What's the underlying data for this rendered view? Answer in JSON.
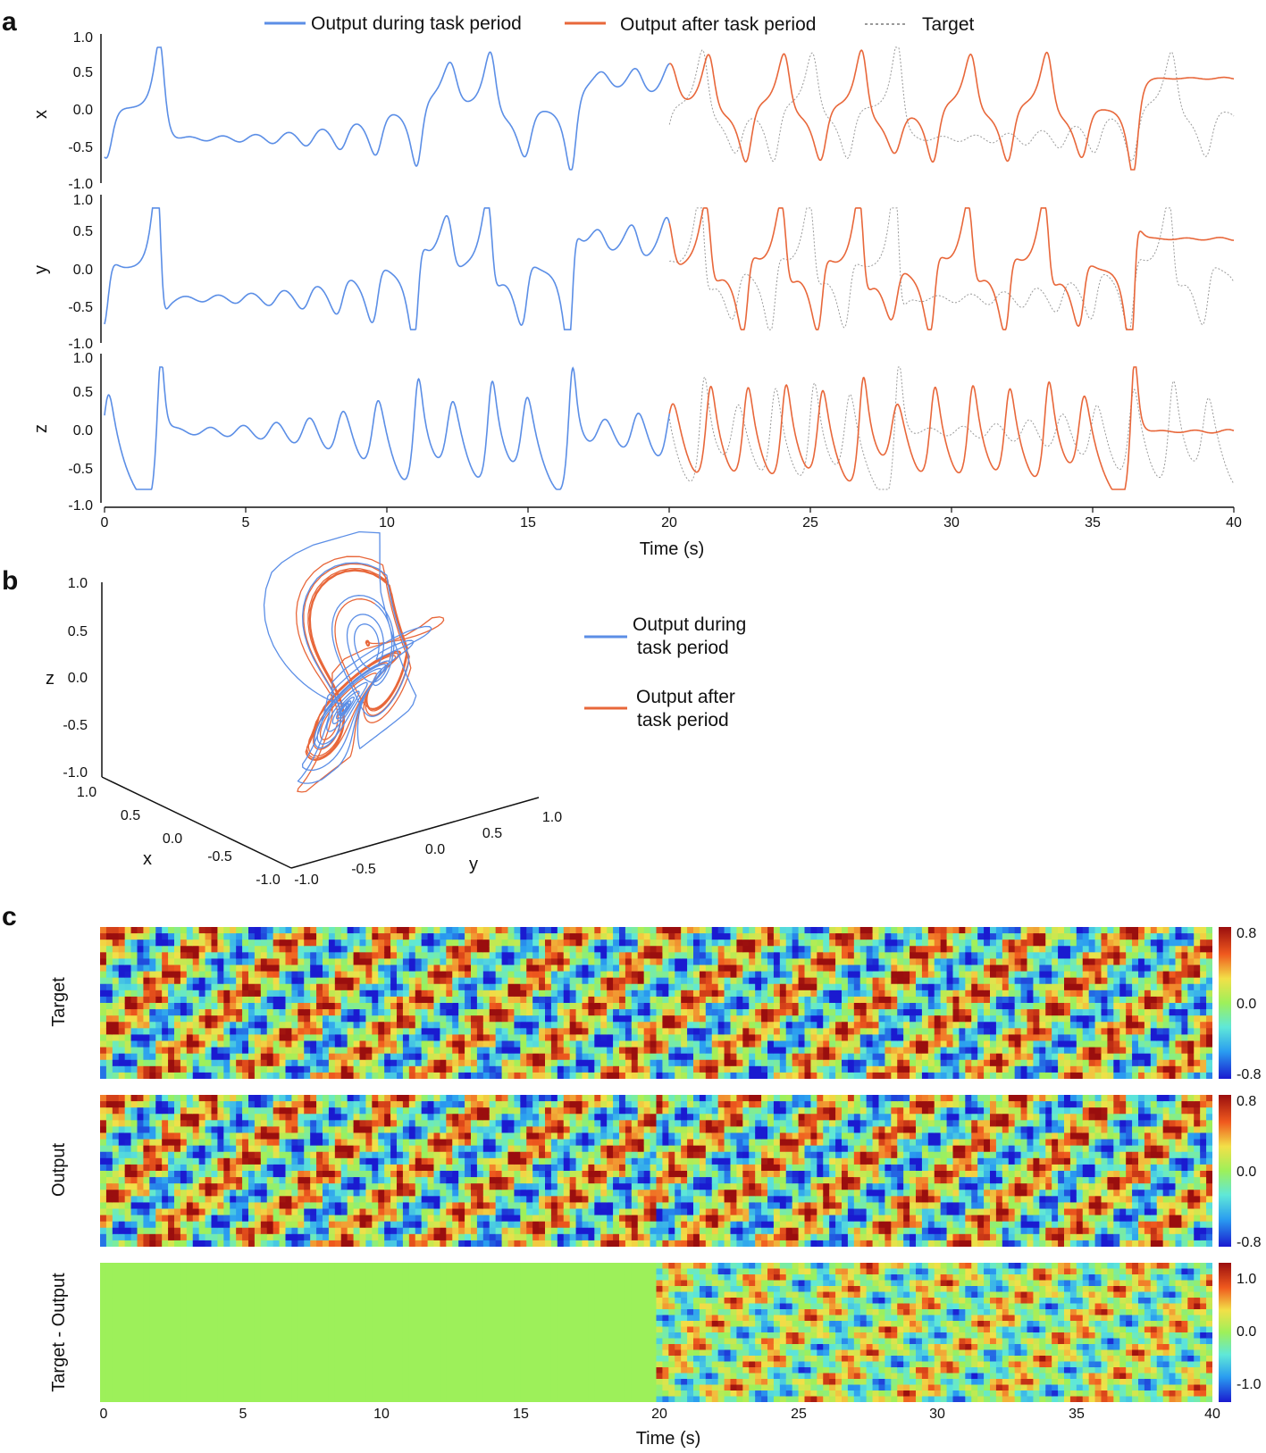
{
  "colors": {
    "during": "#5b8ee6",
    "after": "#e8673a",
    "target": "#9a9a9a",
    "axis": "#111111"
  },
  "panels": {
    "a": "a",
    "b": "b",
    "c": "c"
  },
  "legend": {
    "during": "Output during task period",
    "after": "Output after task period",
    "target": "Target",
    "during_line1": "Output during",
    "during_line2": "task period",
    "after_line1": "Output after",
    "after_line2": "task period"
  },
  "chart_data": [
    {
      "id": "a",
      "type": "line",
      "title": "",
      "xlabel": "Time (s)",
      "xlim": [
        0,
        40
      ],
      "xticks": [
        0,
        5,
        10,
        15,
        20,
        25,
        30,
        35,
        40
      ],
      "task_period_end": 20,
      "subplots": [
        {
          "ylabel": "x",
          "ylim": [
            -1.0,
            1.0
          ],
          "yticks": [
            "1.0",
            "0.5",
            "0.0",
            "-0.5",
            "-1.0"
          ],
          "amplitude_range": [
            -0.8,
            0.8
          ]
        },
        {
          "ylabel": "y",
          "ylim": [
            -1.0,
            1.0
          ],
          "yticks": [
            "1.0",
            "0.5",
            "0.0",
            "-0.5",
            "-1.0"
          ],
          "amplitude_range": [
            -0.8,
            0.8
          ]
        },
        {
          "ylabel": "z",
          "ylim": [
            -1.0,
            1.0
          ],
          "yticks": [
            "1.0",
            "0.5",
            "0.0",
            "-0.5",
            "-1.0"
          ],
          "baseline": -0.8,
          "peak_range": [
            -0.6,
            0.8
          ]
        }
      ],
      "series": [
        {
          "name": "Output during task period",
          "x_range": [
            0,
            20
          ]
        },
        {
          "name": "Output after task period",
          "x_range": [
            20,
            40
          ]
        },
        {
          "name": "Target",
          "x_range": [
            0,
            40
          ]
        }
      ]
    },
    {
      "id": "b",
      "type": "line",
      "projection": "3d",
      "xlabel": "x",
      "ylabel": "y",
      "zlabel": "z",
      "xticks": [
        "1.0",
        "0.5",
        "0.0",
        "-0.5",
        "-1.0"
      ],
      "yticks": [
        "-1.0",
        "-0.5",
        "0.0",
        "0.5",
        "1.0"
      ],
      "zticks": [
        "1.0",
        "0.5",
        "0.0",
        "-0.5",
        "-1.0"
      ],
      "series": [
        {
          "name": "Output during task period",
          "z_peak": 0.9
        },
        {
          "name": "Output after task period",
          "z_peak": 0.7
        }
      ]
    },
    {
      "id": "c",
      "type": "heatmap",
      "xlabel": "Time (s)",
      "xlim": [
        0,
        40
      ],
      "xticks": [
        0,
        5,
        10,
        15,
        20,
        25,
        30,
        35,
        40
      ],
      "maps": [
        {
          "ylabel": "Target",
          "clim": [
            -0.8,
            0.8
          ],
          "cbar_ticks": [
            "0.8",
            "0.0",
            "-0.8"
          ]
        },
        {
          "ylabel": "Output",
          "clim": [
            -0.8,
            0.8
          ],
          "cbar_ticks": [
            "0.8",
            "0.0",
            "-0.8"
          ]
        },
        {
          "ylabel": "Target - Output",
          "clim": [
            -1.0,
            1.0
          ],
          "cbar_ticks": [
            "1.0",
            "0.0",
            "-1.0"
          ],
          "zero_until": 20
        }
      ]
    }
  ]
}
